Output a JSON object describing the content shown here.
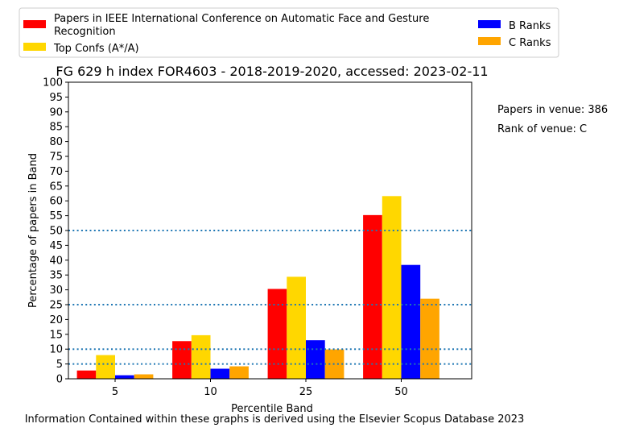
{
  "chart_data": {
    "type": "bar",
    "title": "FG 629 h index FOR4603 - 2018-2019-2020, accessed: 2023-02-11",
    "xlabel": "Percentile Band",
    "ylabel": "Percentage of papers in Band",
    "categories": [
      "5",
      "10",
      "25",
      "50"
    ],
    "ylim": [
      0,
      100
    ],
    "yticks": [
      0,
      5,
      10,
      15,
      20,
      25,
      30,
      35,
      40,
      45,
      50,
      55,
      60,
      65,
      70,
      75,
      80,
      85,
      90,
      95,
      100
    ],
    "reference_lines": [
      5,
      10,
      25,
      50
    ],
    "legend_position": "top",
    "series": [
      {
        "name": "Papers in IEEE International Conference on Automatic Face and Gesture Recognition",
        "color": "#ff0000",
        "values": [
          2.8,
          12.7,
          30.3,
          55.2
        ]
      },
      {
        "name": "Top Confs (A*/A)",
        "color": "#ffd700",
        "values": [
          8.0,
          14.7,
          34.4,
          61.6
        ]
      },
      {
        "name": "B Ranks",
        "color": "#0000ff",
        "values": [
          1.2,
          3.4,
          13.0,
          38.4
        ]
      },
      {
        "name": "C Ranks",
        "color": "#ffa500",
        "values": [
          1.5,
          4.2,
          9.9,
          27.0
        ]
      }
    ],
    "annotations": {
      "papers_in_venue": "Papers in venue: 386",
      "rank_of_venue": "Rank of venue: C"
    },
    "legend": {
      "series0_line1": "Papers in IEEE International Conference on Automatic Face and Gesture",
      "series0_line2": "Recognition"
    },
    "footer": "Information Contained within these graphs is derived using the Elsevier Scopus Database 2023",
    "grid": false
  }
}
